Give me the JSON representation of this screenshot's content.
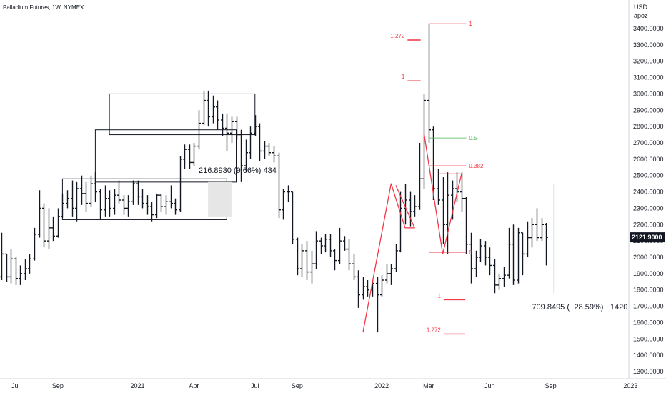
{
  "chart_data": {
    "type": "ohlc",
    "title": "Palladium Futures, 1W, NYMEX",
    "currency": "USD",
    "scale_mode": "apoz",
    "last_price_label": "2121.9000",
    "y_range": [
      1280,
      3460
    ],
    "price_ticks": [
      {
        "value": 3400,
        "label": "3400.0000"
      },
      {
        "value": 3300,
        "label": "3300.0000"
      },
      {
        "value": 3200,
        "label": "3200.0000"
      },
      {
        "value": 3100,
        "label": "3100.0000"
      },
      {
        "value": 3000,
        "label": "3000.0000"
      },
      {
        "value": 2900,
        "label": "2900.0000"
      },
      {
        "value": 2800,
        "label": "2800.0000"
      },
      {
        "value": 2700,
        "label": "2700.0000"
      },
      {
        "value": 2600,
        "label": "2600.0000"
      },
      {
        "value": 2500,
        "label": "2500.0000"
      },
      {
        "value": 2400,
        "label": "2400.0000"
      },
      {
        "value": 2300,
        "label": "2300.0000"
      },
      {
        "value": 2200,
        "label": "2200.0000"
      },
      {
        "value": 2100,
        "label": "2100.0000"
      },
      {
        "value": 2000,
        "label": "2000.0000"
      },
      {
        "value": 1900,
        "label": "1900.0000"
      },
      {
        "value": 1800,
        "label": "1800.0000"
      },
      {
        "value": 1700,
        "label": "1700.0000"
      },
      {
        "value": 1600,
        "label": "1600.0000"
      },
      {
        "value": 1500,
        "label": "1500.0000"
      },
      {
        "value": 1400,
        "label": "1400.0000"
      },
      {
        "value": 1300,
        "label": "1300.0000"
      }
    ],
    "time_ticks": [
      {
        "week": 3,
        "label": "Jul"
      },
      {
        "week": 12,
        "label": "Sep"
      },
      {
        "week": 29,
        "label": "2021"
      },
      {
        "week": 41,
        "label": "Apr"
      },
      {
        "week": 54,
        "label": "Jul"
      },
      {
        "week": 63,
        "label": "Sep"
      },
      {
        "week": 81,
        "label": "2022"
      },
      {
        "week": 91,
        "label": "Mar"
      },
      {
        "week": 104,
        "label": "Jun"
      },
      {
        "week": 117,
        "label": "Sep"
      },
      {
        "week": 134,
        "label": "2023"
      }
    ],
    "bars": [
      {
        "o": 1880,
        "h": 2150,
        "l": 1860,
        "c": 2020
      },
      {
        "o": 2020,
        "h": 2020,
        "l": 1850,
        "c": 1880
      },
      {
        "o": 1880,
        "h": 2050,
        "l": 1840,
        "c": 1990
      },
      {
        "o": 1990,
        "h": 2000,
        "l": 1830,
        "c": 1870
      },
      {
        "o": 1870,
        "h": 1950,
        "l": 1830,
        "c": 1900
      },
      {
        "o": 1900,
        "h": 1990,
        "l": 1860,
        "c": 1930
      },
      {
        "o": 1930,
        "h": 2020,
        "l": 1900,
        "c": 1990
      },
      {
        "o": 1990,
        "h": 2180,
        "l": 1980,
        "c": 2140
      },
      {
        "o": 2140,
        "h": 2410,
        "l": 2120,
        "c": 2300
      },
      {
        "o": 2300,
        "h": 2330,
        "l": 2060,
        "c": 2100
      },
      {
        "o": 2100,
        "h": 2300,
        "l": 2050,
        "c": 2180
      },
      {
        "o": 2180,
        "h": 2250,
        "l": 2100,
        "c": 2130
      },
      {
        "o": 2130,
        "h": 2300,
        "l": 2120,
        "c": 2250
      },
      {
        "o": 2250,
        "h": 2390,
        "l": 2240,
        "c": 2330
      },
      {
        "o": 2330,
        "h": 2410,
        "l": 2300,
        "c": 2360
      },
      {
        "o": 2360,
        "h": 2470,
        "l": 2250,
        "c": 2300
      },
      {
        "o": 2300,
        "h": 2460,
        "l": 2220,
        "c": 2420
      },
      {
        "o": 2420,
        "h": 2500,
        "l": 2320,
        "c": 2390
      },
      {
        "o": 2390,
        "h": 2460,
        "l": 2280,
        "c": 2330
      },
      {
        "o": 2330,
        "h": 2500,
        "l": 2310,
        "c": 2450
      },
      {
        "o": 2450,
        "h": 2520,
        "l": 2340,
        "c": 2400
      },
      {
        "o": 2400,
        "h": 2420,
        "l": 2230,
        "c": 2290
      },
      {
        "o": 2290,
        "h": 2440,
        "l": 2250,
        "c": 2360
      },
      {
        "o": 2360,
        "h": 2410,
        "l": 2250,
        "c": 2300
      },
      {
        "o": 2300,
        "h": 2420,
        "l": 2260,
        "c": 2380
      },
      {
        "o": 2380,
        "h": 2470,
        "l": 2330,
        "c": 2350
      },
      {
        "o": 2350,
        "h": 2380,
        "l": 2260,
        "c": 2300
      },
      {
        "o": 2300,
        "h": 2380,
        "l": 2250,
        "c": 2340
      },
      {
        "o": 2340,
        "h": 2470,
        "l": 2320,
        "c": 2450
      },
      {
        "o": 2450,
        "h": 2470,
        "l": 2320,
        "c": 2370
      },
      {
        "o": 2370,
        "h": 2420,
        "l": 2300,
        "c": 2330
      },
      {
        "o": 2330,
        "h": 2380,
        "l": 2260,
        "c": 2310
      },
      {
        "o": 2310,
        "h": 2340,
        "l": 2220,
        "c": 2260
      },
      {
        "o": 2260,
        "h": 2390,
        "l": 2240,
        "c": 2380
      },
      {
        "o": 2380,
        "h": 2390,
        "l": 2280,
        "c": 2310
      },
      {
        "o": 2310,
        "h": 2380,
        "l": 2260,
        "c": 2340
      },
      {
        "o": 2340,
        "h": 2440,
        "l": 2300,
        "c": 2330
      },
      {
        "o": 2330,
        "h": 2360,
        "l": 2260,
        "c": 2290
      },
      {
        "o": 2290,
        "h": 2620,
        "l": 2280,
        "c": 2600
      },
      {
        "o": 2600,
        "h": 2690,
        "l": 2540,
        "c": 2660
      },
      {
        "o": 2660,
        "h": 2690,
        "l": 2540,
        "c": 2580
      },
      {
        "o": 2580,
        "h": 2700,
        "l": 2560,
        "c": 2680
      },
      {
        "o": 2680,
        "h": 2900,
        "l": 2660,
        "c": 2820
      },
      {
        "o": 2820,
        "h": 3020,
        "l": 2810,
        "c": 2960
      },
      {
        "o": 2960,
        "h": 3020,
        "l": 2800,
        "c": 2860
      },
      {
        "o": 2860,
        "h": 2990,
        "l": 2820,
        "c": 2920
      },
      {
        "o": 2920,
        "h": 2960,
        "l": 2780,
        "c": 2840
      },
      {
        "o": 2840,
        "h": 2880,
        "l": 2740,
        "c": 2790
      },
      {
        "o": 2790,
        "h": 2880,
        "l": 2650,
        "c": 2760
      },
      {
        "o": 2760,
        "h": 2860,
        "l": 2700,
        "c": 2830
      },
      {
        "o": 2830,
        "h": 2860,
        "l": 2720,
        "c": 2750
      },
      {
        "o": 2750,
        "h": 2780,
        "l": 2460,
        "c": 2560
      },
      {
        "o": 2560,
        "h": 2720,
        "l": 2520,
        "c": 2640
      },
      {
        "o": 2640,
        "h": 2800,
        "l": 2600,
        "c": 2760
      },
      {
        "o": 2760,
        "h": 2870,
        "l": 2740,
        "c": 2800
      },
      {
        "o": 2800,
        "h": 2820,
        "l": 2590,
        "c": 2650
      },
      {
        "o": 2650,
        "h": 2710,
        "l": 2600,
        "c": 2680
      },
      {
        "o": 2680,
        "h": 2700,
        "l": 2620,
        "c": 2640
      },
      {
        "o": 2640,
        "h": 2680,
        "l": 2580,
        "c": 2620
      },
      {
        "o": 2620,
        "h": 2640,
        "l": 2240,
        "c": 2290
      },
      {
        "o": 2290,
        "h": 2420,
        "l": 2230,
        "c": 2400
      },
      {
        "o": 2400,
        "h": 2440,
        "l": 2340,
        "c": 2400
      },
      {
        "o": 2400,
        "h": 2400,
        "l": 2080,
        "c": 2110
      },
      {
        "o": 2110,
        "h": 2120,
        "l": 1890,
        "c": 1930
      },
      {
        "o": 1930,
        "h": 2080,
        "l": 1880,
        "c": 2040
      },
      {
        "o": 2040,
        "h": 2100,
        "l": 1860,
        "c": 1910
      },
      {
        "o": 1910,
        "h": 2040,
        "l": 1840,
        "c": 1960
      },
      {
        "o": 1960,
        "h": 2160,
        "l": 1930,
        "c": 2100
      },
      {
        "o": 2100,
        "h": 2120,
        "l": 2020,
        "c": 2070
      },
      {
        "o": 2070,
        "h": 2140,
        "l": 2030,
        "c": 2110
      },
      {
        "o": 2110,
        "h": 2140,
        "l": 2000,
        "c": 2040
      },
      {
        "o": 2040,
        "h": 2050,
        "l": 1920,
        "c": 1980
      },
      {
        "o": 1980,
        "h": 2180,
        "l": 1960,
        "c": 2100
      },
      {
        "o": 2100,
        "h": 2130,
        "l": 2040,
        "c": 2050
      },
      {
        "o": 2050,
        "h": 2110,
        "l": 1920,
        "c": 1960
      },
      {
        "o": 1960,
        "h": 2020,
        "l": 1860,
        "c": 1880
      },
      {
        "o": 1880,
        "h": 1920,
        "l": 1690,
        "c": 1770
      },
      {
        "o": 1770,
        "h": 1880,
        "l": 1740,
        "c": 1820
      },
      {
        "o": 1820,
        "h": 1860,
        "l": 1760,
        "c": 1800
      },
      {
        "o": 1800,
        "h": 1860,
        "l": 1760,
        "c": 1840
      },
      {
        "o": 1840,
        "h": 1880,
        "l": 1540,
        "c": 1770
      },
      {
        "o": 1770,
        "h": 1890,
        "l": 1760,
        "c": 1860
      },
      {
        "o": 1860,
        "h": 1960,
        "l": 1840,
        "c": 1900
      },
      {
        "o": 1900,
        "h": 1960,
        "l": 1830,
        "c": 1930
      },
      {
        "o": 1930,
        "h": 2080,
        "l": 1910,
        "c": 2040
      },
      {
        "o": 2040,
        "h": 2400,
        "l": 2030,
        "c": 2300
      },
      {
        "o": 2300,
        "h": 2450,
        "l": 2200,
        "c": 2350
      },
      {
        "o": 2350,
        "h": 2400,
        "l": 2190,
        "c": 2280
      },
      {
        "o": 2280,
        "h": 2380,
        "l": 2250,
        "c": 2310
      },
      {
        "o": 2310,
        "h": 2700,
        "l": 2290,
        "c": 2480
      },
      {
        "o": 2480,
        "h": 3000,
        "l": 2420,
        "c": 2960
      },
      {
        "o": 2960,
        "h": 3430,
        "l": 2700,
        "c": 2780
      },
      {
        "o": 2780,
        "h": 2800,
        "l": 2350,
        "c": 2420
      },
      {
        "o": 2420,
        "h": 2540,
        "l": 2320,
        "c": 2350
      },
      {
        "o": 2350,
        "h": 2490,
        "l": 2080,
        "c": 2200
      },
      {
        "o": 2200,
        "h": 2520,
        "l": 2020,
        "c": 2380
      },
      {
        "o": 2380,
        "h": 2470,
        "l": 2230,
        "c": 2420
      },
      {
        "o": 2420,
        "h": 2520,
        "l": 2340,
        "c": 2400
      },
      {
        "o": 2400,
        "h": 2520,
        "l": 2280,
        "c": 2360
      },
      {
        "o": 2360,
        "h": 2370,
        "l": 2020,
        "c": 2080
      },
      {
        "o": 2080,
        "h": 2150,
        "l": 1840,
        "c": 1930
      },
      {
        "o": 1930,
        "h": 2040,
        "l": 1880,
        "c": 2000
      },
      {
        "o": 2000,
        "h": 2110,
        "l": 1970,
        "c": 2070
      },
      {
        "o": 2070,
        "h": 2100,
        "l": 1950,
        "c": 2000
      },
      {
        "o": 2000,
        "h": 2060,
        "l": 1890,
        "c": 1950
      },
      {
        "o": 1950,
        "h": 1990,
        "l": 1780,
        "c": 1830
      },
      {
        "o": 1830,
        "h": 1900,
        "l": 1800,
        "c": 1870
      },
      {
        "o": 1870,
        "h": 1940,
        "l": 1820,
        "c": 1890
      },
      {
        "o": 1890,
        "h": 2180,
        "l": 1870,
        "c": 2080
      },
      {
        "o": 2080,
        "h": 2200,
        "l": 1830,
        "c": 1860
      },
      {
        "o": 1860,
        "h": 2180,
        "l": 1840,
        "c": 2150
      },
      {
        "o": 2150,
        "h": 2150,
        "l": 1890,
        "c": 2020
      },
      {
        "o": 2020,
        "h": 2220,
        "l": 2000,
        "c": 2120
      },
      {
        "o": 2120,
        "h": 2240,
        "l": 2060,
        "c": 2200
      },
      {
        "o": 2200,
        "h": 2300,
        "l": 2100,
        "c": 2120
      },
      {
        "o": 2120,
        "h": 2240,
        "l": 2100,
        "c": 2200
      },
      {
        "o": 2200,
        "h": 2210,
        "l": 1950,
        "c": 2122
      }
    ],
    "annotations": {
      "rectangles": [
        {
          "w0": 13,
          "w1": 48,
          "top": 2480,
          "bottom": 2230,
          "style": "outline"
        },
        {
          "w0": 20,
          "w1": 50,
          "top": 2780,
          "bottom": 2460,
          "style": "outline"
        },
        {
          "w0": 23,
          "w1": 54,
          "top": 3000,
          "bottom": 2750,
          "style": "outline"
        },
        {
          "w0": 44,
          "w1": 49,
          "top": 2460,
          "bottom": 2250,
          "style": "shaded"
        }
      ],
      "measure_up_text": "216.8930 (9.66%) 434",
      "measure_down_text": "−709.8495 (−28.59%) −1420",
      "zigzag_paths": [
        [
          [
            77,
            1540
          ],
          [
            83,
            2450
          ],
          [
            86,
            2180
          ],
          [
            86,
            2180
          ],
          [
            88,
            2180
          ],
          [
            84,
            2440
          ]
        ],
        [
          [
            90,
            2760
          ],
          [
            94,
            2020
          ],
          [
            98,
            2510
          ],
          [
            93,
            2510
          ]
        ]
      ],
      "fib_right": {
        "w0": 91,
        "w1": 99,
        "levels": [
          {
            "price": 3430,
            "label": "1",
            "color": "#f23645"
          },
          {
            "price": 2730,
            "label": "0.5",
            "color": "#4caf50"
          },
          {
            "price": 2560,
            "label": "0.382",
            "color": "#f23645"
          },
          {
            "price": 2030,
            "label": "0",
            "color": "#f23645"
          }
        ]
      },
      "fib_small_top": [
        {
          "price": 3330,
          "label": "1.272"
        },
        {
          "price": 3080,
          "label": "1"
        }
      ],
      "fib_small_bottom": [
        {
          "price": 1740,
          "label": "1"
        },
        {
          "price": 1530,
          "label": "1.272"
        }
      ],
      "thin_vertical": {
        "week": 117,
        "top": 2450,
        "bottom": 1780
      }
    }
  }
}
